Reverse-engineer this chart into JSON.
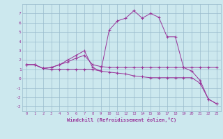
{
  "xlabel": "Windchill (Refroidissement éolien,°C)",
  "bg_color": "#cce8ee",
  "line_color": "#993399",
  "grid_color": "#99bbcc",
  "xlim": [
    -0.5,
    23.5
  ],
  "ylim": [
    -3.5,
    8.0
  ],
  "xticks": [
    0,
    1,
    2,
    3,
    4,
    5,
    6,
    7,
    8,
    9,
    10,
    11,
    12,
    13,
    14,
    15,
    16,
    17,
    18,
    19,
    20,
    21,
    22,
    23
  ],
  "yticks": [
    -3,
    -2,
    -1,
    0,
    1,
    2,
    3,
    4,
    5,
    6,
    7
  ],
  "series1_x": [
    0,
    1,
    2,
    3,
    4,
    5,
    6,
    7,
    8,
    9,
    10,
    11,
    12,
    13,
    14,
    15,
    16,
    17,
    18,
    19,
    20,
    21,
    22,
    23
  ],
  "series1_y": [
    1.5,
    1.5,
    1.1,
    1.2,
    1.5,
    1.8,
    2.2,
    2.5,
    1.5,
    1.3,
    1.2,
    1.2,
    1.2,
    1.2,
    1.2,
    1.2,
    1.2,
    1.2,
    1.2,
    1.2,
    1.2,
    1.2,
    1.2,
    1.2
  ],
  "series2_x": [
    0,
    1,
    2,
    3,
    4,
    5,
    6,
    7,
    8,
    9,
    10,
    11,
    12,
    13,
    14,
    15,
    16,
    17,
    18,
    19,
    20,
    21,
    22,
    23
  ],
  "series2_y": [
    1.5,
    1.5,
    1.1,
    1.2,
    1.5,
    2.0,
    2.5,
    3.0,
    1.2,
    0.8,
    5.2,
    6.2,
    6.5,
    7.3,
    6.5,
    7.0,
    6.6,
    4.5,
    4.5,
    1.2,
    0.8,
    -0.2,
    -2.2,
    -2.7
  ],
  "series3_x": [
    0,
    1,
    2,
    3,
    4,
    5,
    6,
    7,
    8,
    9,
    10,
    11,
    12,
    13,
    14,
    15,
    16,
    17,
    18,
    19,
    20,
    21,
    22,
    23
  ],
  "series3_y": [
    1.5,
    1.5,
    1.1,
    1.0,
    1.0,
    1.0,
    1.0,
    1.0,
    1.0,
    0.8,
    0.7,
    0.6,
    0.5,
    0.3,
    0.2,
    0.1,
    0.1,
    0.1,
    0.1,
    0.1,
    0.1,
    -0.5,
    -2.2,
    -2.7
  ]
}
